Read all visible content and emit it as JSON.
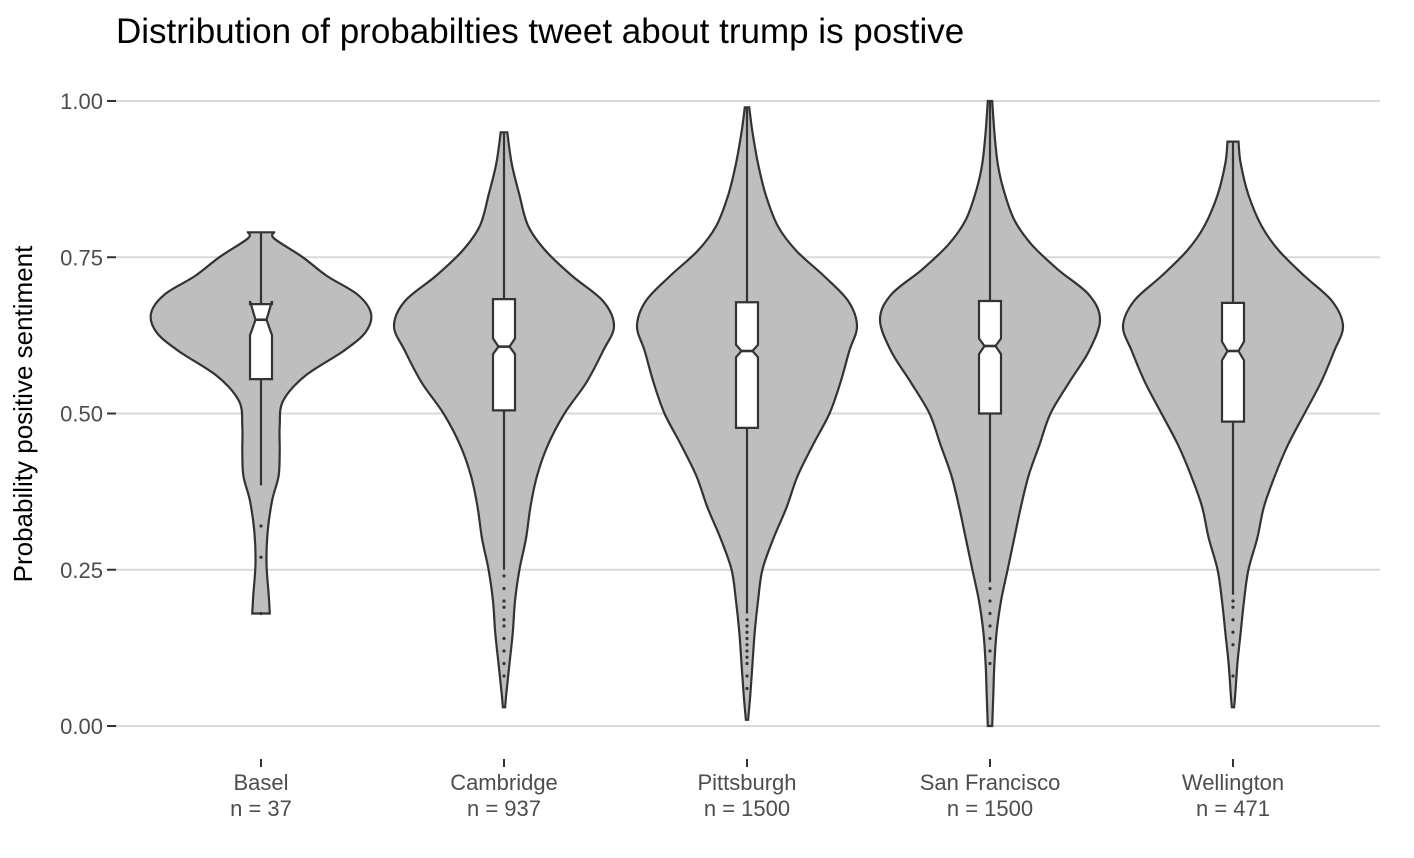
{
  "chart_data": {
    "type": "violin",
    "title": "Distribution of probabilties tweet about trump is postive",
    "xlabel": "",
    "ylabel": "Probability positive sentiment",
    "ylim": [
      0,
      1
    ],
    "yticks": [
      "0.00",
      "0.25",
      "0.50",
      "0.75",
      "1.00"
    ],
    "ytick_values": [
      0,
      0.25,
      0.5,
      0.75,
      1.0
    ],
    "grid": "horizontal major lines",
    "legend": "none",
    "colors": {
      "violin_fill": "#bebebe",
      "outline": "#333333",
      "box_fill": "#ffffff",
      "grid": "#d9d9d9",
      "tick_text": "#4d4d4d"
    },
    "groups": [
      {
        "name": "Basel",
        "n_label": "n = 37",
        "min": 0.18,
        "max": 0.79,
        "q1": 0.555,
        "median": 0.65,
        "q3": 0.675,
        "notch_low": 0.625,
        "notch_high": 0.68,
        "whisker_low": 0.385,
        "whisker_high": 0.79,
        "outliers": [
          0.32,
          0.27,
          0.18
        ],
        "density": [
          [
            0.18,
            0.08
          ],
          [
            0.21,
            0.07
          ],
          [
            0.26,
            0.05
          ],
          [
            0.31,
            0.06
          ],
          [
            0.36,
            0.1
          ],
          [
            0.4,
            0.16
          ],
          [
            0.44,
            0.17
          ],
          [
            0.48,
            0.17
          ],
          [
            0.52,
            0.2
          ],
          [
            0.56,
            0.4
          ],
          [
            0.6,
            0.75
          ],
          [
            0.63,
            0.95
          ],
          [
            0.66,
            1.0
          ],
          [
            0.69,
            0.88
          ],
          [
            0.72,
            0.6
          ],
          [
            0.75,
            0.38
          ],
          [
            0.78,
            0.12
          ],
          [
            0.79,
            0.12
          ]
        ]
      },
      {
        "name": "Cambridge",
        "n_label": "n = 937",
        "min": 0.03,
        "max": 0.95,
        "q1": 0.505,
        "median": 0.607,
        "q3": 0.683,
        "notch_low": 0.595,
        "notch_high": 0.62,
        "whisker_low": 0.25,
        "whisker_high": 0.95,
        "outliers": [
          0.24,
          0.22,
          0.2,
          0.19,
          0.17,
          0.16,
          0.14,
          0.12,
          0.1,
          0.08
        ],
        "density": [
          [
            0.03,
            0.01
          ],
          [
            0.05,
            0.02
          ],
          [
            0.1,
            0.05
          ],
          [
            0.15,
            0.08
          ],
          [
            0.2,
            0.1
          ],
          [
            0.25,
            0.14
          ],
          [
            0.3,
            0.2
          ],
          [
            0.35,
            0.24
          ],
          [
            0.4,
            0.3
          ],
          [
            0.45,
            0.4
          ],
          [
            0.5,
            0.55
          ],
          [
            0.55,
            0.75
          ],
          [
            0.6,
            0.9
          ],
          [
            0.64,
            1.0
          ],
          [
            0.68,
            0.9
          ],
          [
            0.72,
            0.62
          ],
          [
            0.76,
            0.38
          ],
          [
            0.8,
            0.22
          ],
          [
            0.85,
            0.14
          ],
          [
            0.9,
            0.07
          ],
          [
            0.95,
            0.03
          ]
        ]
      },
      {
        "name": "Pittsburgh",
        "n_label": "n = 1500",
        "min": 0.01,
        "max": 0.99,
        "q1": 0.477,
        "median": 0.6,
        "q3": 0.678,
        "notch_low": 0.59,
        "notch_high": 0.61,
        "whisker_low": 0.18,
        "whisker_high": 0.99,
        "outliers": [
          0.17,
          0.16,
          0.15,
          0.14,
          0.13,
          0.12,
          0.11,
          0.1,
          0.08,
          0.06
        ],
        "density": [
          [
            0.01,
            0.01
          ],
          [
            0.05,
            0.03
          ],
          [
            0.1,
            0.05
          ],
          [
            0.15,
            0.07
          ],
          [
            0.2,
            0.1
          ],
          [
            0.25,
            0.14
          ],
          [
            0.3,
            0.24
          ],
          [
            0.35,
            0.36
          ],
          [
            0.4,
            0.46
          ],
          [
            0.45,
            0.6
          ],
          [
            0.5,
            0.75
          ],
          [
            0.55,
            0.85
          ],
          [
            0.6,
            0.93
          ],
          [
            0.64,
            1.0
          ],
          [
            0.68,
            0.92
          ],
          [
            0.72,
            0.7
          ],
          [
            0.76,
            0.45
          ],
          [
            0.8,
            0.28
          ],
          [
            0.85,
            0.17
          ],
          [
            0.9,
            0.1
          ],
          [
            0.95,
            0.05
          ],
          [
            0.99,
            0.02
          ]
        ]
      },
      {
        "name": "San Francisco",
        "n_label": "n = 1500",
        "min": 0.0,
        "max": 1.0,
        "q1": 0.5,
        "median": 0.608,
        "q3": 0.68,
        "notch_low": 0.595,
        "notch_high": 0.62,
        "whisker_low": 0.23,
        "whisker_high": 1.0,
        "outliers": [
          0.22,
          0.2,
          0.18,
          0.16,
          0.14,
          0.12,
          0.1
        ],
        "density": [
          [
            0.0,
            0.02
          ],
          [
            0.05,
            0.03
          ],
          [
            0.1,
            0.04
          ],
          [
            0.15,
            0.06
          ],
          [
            0.2,
            0.1
          ],
          [
            0.25,
            0.16
          ],
          [
            0.3,
            0.22
          ],
          [
            0.35,
            0.28
          ],
          [
            0.4,
            0.35
          ],
          [
            0.45,
            0.45
          ],
          [
            0.5,
            0.55
          ],
          [
            0.55,
            0.72
          ],
          [
            0.6,
            0.9
          ],
          [
            0.65,
            1.0
          ],
          [
            0.69,
            0.9
          ],
          [
            0.73,
            0.62
          ],
          [
            0.77,
            0.38
          ],
          [
            0.81,
            0.22
          ],
          [
            0.86,
            0.12
          ],
          [
            0.9,
            0.07
          ],
          [
            0.95,
            0.04
          ],
          [
            1.0,
            0.02
          ]
        ]
      },
      {
        "name": "Wellington",
        "n_label": "n = 471",
        "min": 0.03,
        "max": 0.935,
        "q1": 0.487,
        "median": 0.6,
        "q3": 0.677,
        "notch_low": 0.585,
        "notch_high": 0.615,
        "whisker_low": 0.21,
        "whisker_high": 0.935,
        "outliers": [
          0.2,
          0.19,
          0.17,
          0.15,
          0.13,
          0.08
        ],
        "density": [
          [
            0.03,
            0.01
          ],
          [
            0.05,
            0.02
          ],
          [
            0.1,
            0.04
          ],
          [
            0.15,
            0.07
          ],
          [
            0.2,
            0.1
          ],
          [
            0.25,
            0.14
          ],
          [
            0.3,
            0.22
          ],
          [
            0.35,
            0.28
          ],
          [
            0.4,
            0.38
          ],
          [
            0.45,
            0.5
          ],
          [
            0.5,
            0.65
          ],
          [
            0.55,
            0.8
          ],
          [
            0.6,
            0.92
          ],
          [
            0.64,
            1.0
          ],
          [
            0.68,
            0.9
          ],
          [
            0.72,
            0.65
          ],
          [
            0.76,
            0.42
          ],
          [
            0.8,
            0.26
          ],
          [
            0.85,
            0.14
          ],
          [
            0.9,
            0.07
          ],
          [
            0.935,
            0.05
          ]
        ]
      }
    ]
  }
}
